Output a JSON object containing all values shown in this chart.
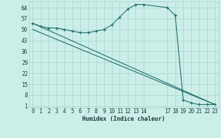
{
  "xlabel": "Humidex (Indice chaleur)",
  "bg_color": "#cceee8",
  "grid_color": "#aad8d0",
  "line_color": "#1a6b6b",
  "xlim": [
    -0.5,
    23.5
  ],
  "ylim": [
    0,
    68
  ],
  "y_ticks": [
    1,
    8,
    15,
    22,
    29,
    36,
    43,
    50,
    57,
    64
  ],
  "x_ticks": [
    0,
    1,
    2,
    3,
    4,
    5,
    6,
    7,
    8,
    9,
    10,
    11,
    12,
    13,
    14,
    17,
    18,
    19,
    20,
    21,
    22,
    23
  ],
  "curve_x": [
    0,
    1,
    2,
    3,
    4,
    5,
    6,
    7,
    8,
    9,
    10,
    11,
    12,
    13,
    14,
    17,
    18,
    19,
    20,
    21,
    22,
    23
  ],
  "curve_y": [
    54,
    52,
    51,
    51,
    50,
    49,
    48,
    48,
    49,
    50,
    53,
    58,
    63,
    66,
    66,
    64,
    59,
    5,
    3,
    2,
    2,
    2
  ],
  "line1_x": [
    0,
    23
  ],
  "line1_y": [
    54,
    2
  ],
  "line2_x": [
    0,
    23
  ],
  "line2_y": [
    50,
    2
  ]
}
